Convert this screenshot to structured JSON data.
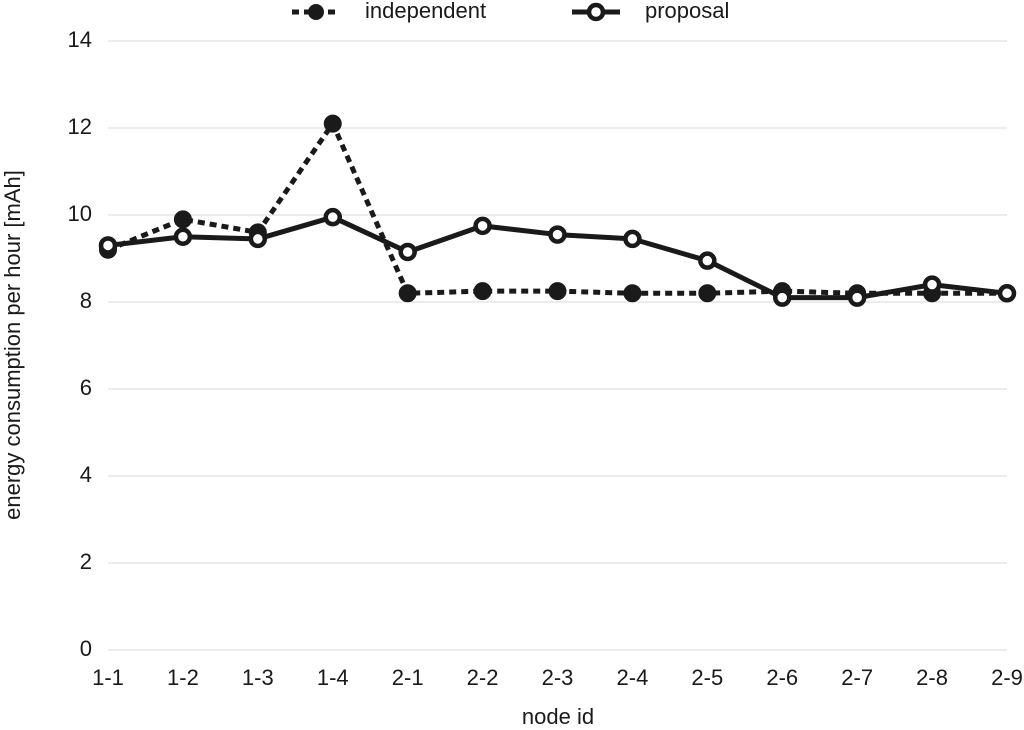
{
  "chart_data": {
    "type": "line",
    "x_label": "node id",
    "y_label": "energy consumption per hour [mAh]",
    "categories": [
      "1-1",
      "1-2",
      "1-3",
      "1-4",
      "2-1",
      "2-2",
      "2-3",
      "2-4",
      "2-5",
      "2-6",
      "2-7",
      "2-8",
      "2-9"
    ],
    "series": [
      {
        "name": "independent",
        "color": "#1a1a1a",
        "line_style": "dashed",
        "marker": "filled",
        "values": [
          9.2,
          9.9,
          9.6,
          12.1,
          8.2,
          8.25,
          8.25,
          8.2,
          8.2,
          8.25,
          8.2,
          8.2,
          8.2
        ]
      },
      {
        "name": "proposal",
        "color": "#1a1a1a",
        "line_style": "solid",
        "marker": "hollow",
        "values": [
          9.3,
          9.5,
          9.45,
          9.95,
          9.15,
          9.75,
          9.55,
          9.45,
          8.95,
          8.1,
          8.1,
          8.4,
          8.2
        ]
      }
    ],
    "ylim": [
      0,
      14
    ],
    "yticks": [
      0,
      2,
      4,
      6,
      8,
      10,
      12,
      14
    ],
    "grid": true,
    "legend_position": "top"
  }
}
